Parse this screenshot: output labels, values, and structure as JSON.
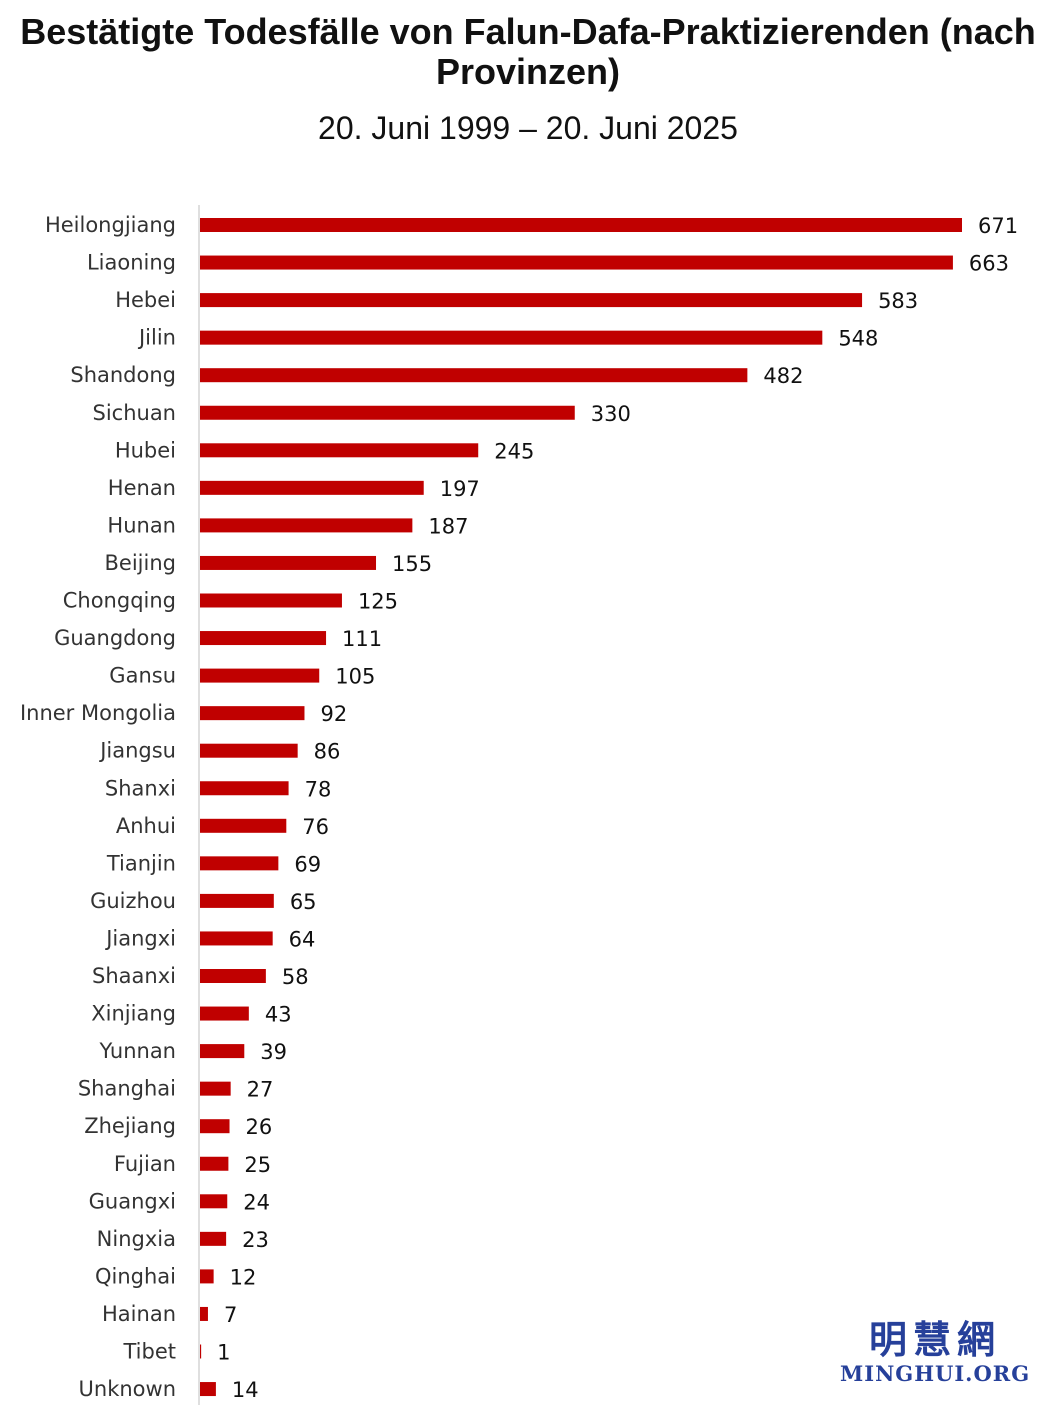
{
  "colors": {
    "bar": "#c00000",
    "axis": "#bfbfbf",
    "watermark": "#26409a"
  },
  "chart_data": {
    "type": "bar",
    "orientation": "horizontal",
    "title": "Bestätigte Todesfälle von Falun-Dafa-Praktizierenden (nach Provinzen)",
    "subtitle": "20. Juni 1999 – 20. Juni 2025",
    "xlabel": "",
    "ylabel": "",
    "xlim": [
      0,
      671
    ],
    "grid": false,
    "legend": "none",
    "categories": [
      "Heilongjiang",
      "Liaoning",
      "Hebei",
      "Jilin",
      "Shandong",
      "Sichuan",
      "Hubei",
      "Henan",
      "Hunan",
      "Beijing",
      "Chongqing",
      "Guangdong",
      "Gansu",
      "Inner Mongolia",
      "Jiangsu",
      "Shanxi",
      "Anhui",
      "Tianjin",
      "Guizhou",
      "Jiangxi",
      "Shaanxi",
      "Xinjiang",
      "Yunnan",
      "Shanghai",
      "Zhejiang",
      "Fujian",
      "Guangxi",
      "Ningxia",
      "Qinghai",
      "Hainan",
      "Tibet",
      "Unknown"
    ],
    "values": [
      671,
      663,
      583,
      548,
      482,
      330,
      245,
      197,
      187,
      155,
      125,
      111,
      105,
      92,
      86,
      78,
      76,
      69,
      65,
      64,
      58,
      43,
      39,
      27,
      26,
      25,
      24,
      23,
      12,
      7,
      1,
      14
    ]
  },
  "watermark": {
    "chinese": "明慧網",
    "latin": "MINGHUI.ORG"
  }
}
